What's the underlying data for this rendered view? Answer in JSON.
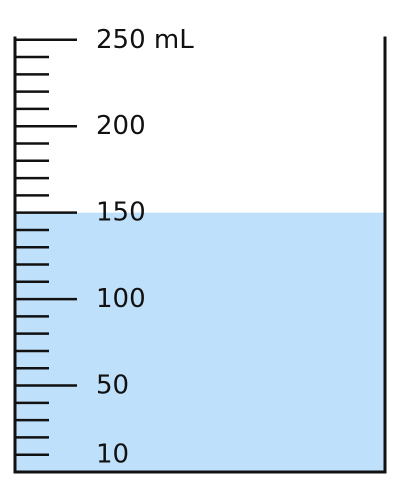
{
  "cylinder": {
    "unit": "mL",
    "scale": {
      "min": 0,
      "max": 250,
      "minor_step": 10,
      "major_labels": [
        {
          "value": 250,
          "text": "250 mL"
        },
        {
          "value": 200,
          "text": "200"
        },
        {
          "value": 150,
          "text": "150"
        },
        {
          "value": 100,
          "text": "100"
        },
        {
          "value": 50,
          "text": "50"
        },
        {
          "value": 10,
          "text": "10"
        }
      ]
    },
    "liquid": {
      "level": 150,
      "color": "#bfe0fb"
    },
    "outline_color": "#111111"
  }
}
